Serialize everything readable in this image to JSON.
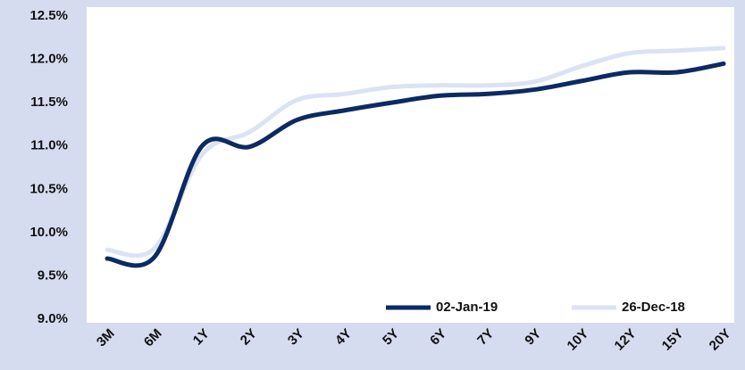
{
  "chart_data": {
    "type": "line",
    "categories": [
      "3M",
      "6M",
      "1Y",
      "2Y",
      "3Y",
      "4Y",
      "5Y",
      "6Y",
      "7Y",
      "9Y",
      "10Y",
      "12Y",
      "15Y",
      "20Y"
    ],
    "series": [
      {
        "name": "02-Jan-19",
        "color": "#0c2a63",
        "values": [
          9.7,
          9.72,
          11.0,
          10.99,
          11.3,
          11.41,
          11.5,
          11.58,
          11.6,
          11.65,
          11.75,
          11.85,
          11.85,
          11.95
        ]
      },
      {
        "name": "26-Dec-18",
        "color": "#dbe3f3",
        "values": [
          9.8,
          9.82,
          10.9,
          11.16,
          11.53,
          11.6,
          11.68,
          11.7,
          11.7,
          11.74,
          11.92,
          12.07,
          12.1,
          12.13
        ]
      }
    ],
    "ylim": [
      9.0,
      12.5
    ],
    "yticks": [
      {
        "value": 9.0,
        "label": "9.0%"
      },
      {
        "value": 9.5,
        "label": "9.5%"
      },
      {
        "value": 10.0,
        "label": "10.0%"
      },
      {
        "value": 10.5,
        "label": "10.5%"
      },
      {
        "value": 11.0,
        "label": "11.0%"
      },
      {
        "value": 11.5,
        "label": "11.5%"
      },
      {
        "value": 12.0,
        "label": "12.0%"
      },
      {
        "value": 12.5,
        "label": "12.5%"
      }
    ],
    "grid": false,
    "legend": "lower right"
  }
}
